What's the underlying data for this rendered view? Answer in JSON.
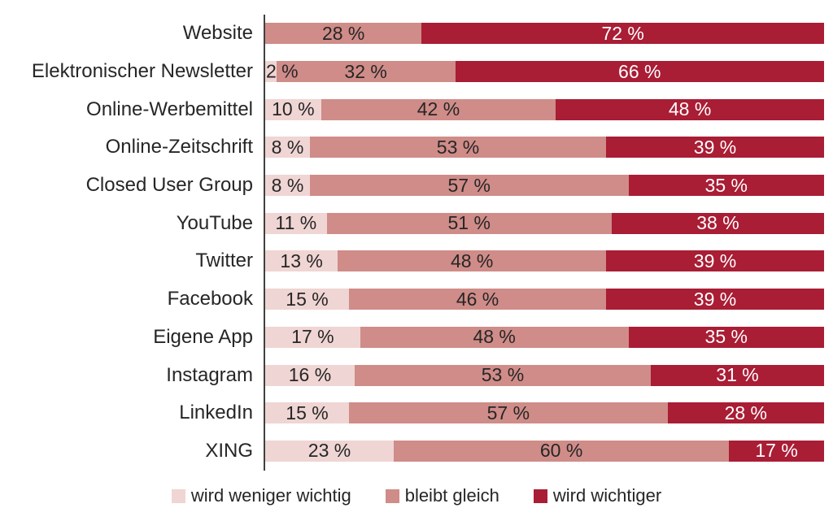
{
  "chart_data": {
    "type": "bar",
    "orientation": "horizontal",
    "stacked": true,
    "title": "",
    "xlabel": "",
    "ylabel": "",
    "xlim": [
      0,
      100
    ],
    "grid": false,
    "legend_position": "bottom",
    "value_suffix": " %",
    "categories": [
      "Website",
      "Elektronischer Newsletter",
      "Online-Werbemittel",
      "Online-Zeitschrift",
      "Closed User Group",
      "YouTube",
      "Twitter",
      "Facebook",
      "Eigene App",
      "Instagram",
      "LinkedIn",
      "XING"
    ],
    "series": [
      {
        "name": "wird weniger wichtig",
        "color": "#efd5d3",
        "label_color": "#262626",
        "values": [
          0,
          2,
          10,
          8,
          8,
          11,
          13,
          15,
          17,
          16,
          15,
          23
        ]
      },
      {
        "name": "bleibt gleich",
        "color": "#cf8c88",
        "label_color": "#262626",
        "values": [
          28,
          32,
          42,
          53,
          57,
          51,
          48,
          46,
          48,
          53,
          57,
          60
        ]
      },
      {
        "name": "wird wichtiger",
        "color": "#a91d35",
        "label_color": "#ffffff",
        "values": [
          72,
          66,
          48,
          39,
          35,
          38,
          39,
          39,
          35,
          31,
          28,
          17
        ]
      }
    ]
  },
  "colors": {
    "background": "#ffffff",
    "axis": "#404040",
    "category_text": "#262626"
  }
}
